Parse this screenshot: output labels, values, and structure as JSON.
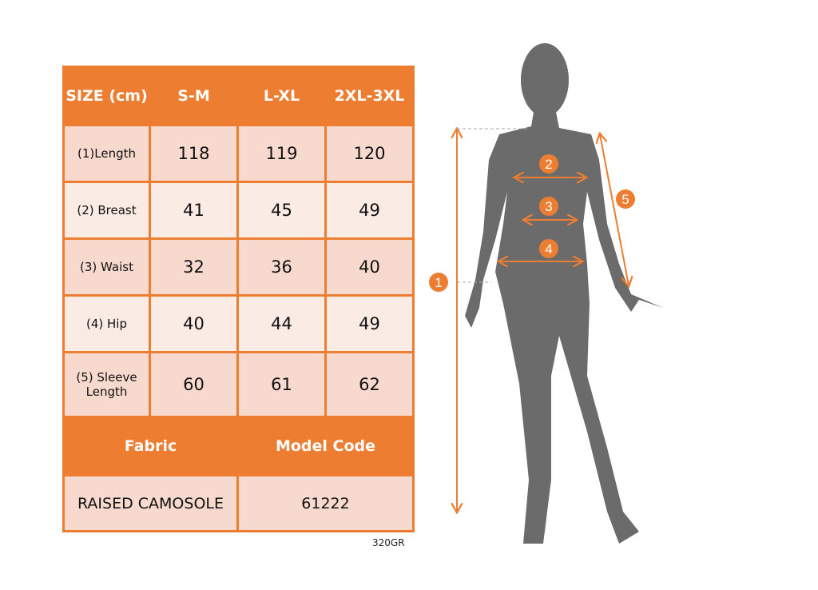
{
  "header": {
    "size": "SIZE (cm)",
    "cols": [
      "S-M",
      "L-XL",
      "2XL-3XL"
    ]
  },
  "rows": [
    {
      "label": "(1)Length",
      "values": [
        "118",
        "119",
        "120"
      ]
    },
    {
      "label": "(2) Breast",
      "values": [
        "41",
        "45",
        "49"
      ]
    },
    {
      "label": "(3) Waist",
      "values": [
        "32",
        "36",
        "40"
      ]
    },
    {
      "label": "(4) Hip",
      "values": [
        "40",
        "44",
        "49"
      ]
    },
    {
      "label": "(5) Sleeve Length",
      "values": [
        "60",
        "61",
        "62"
      ]
    }
  ],
  "footer": {
    "fabric_label": "Fabric",
    "model_label": "Model Code",
    "fabric": "RAISED CAMOSOLE",
    "model": "61222"
  },
  "note": "320GR",
  "markers": [
    "1",
    "2",
    "3",
    "4",
    "5"
  ],
  "colors": {
    "accent": "#ED7D31",
    "cell_dark": "#F8D9CD",
    "cell_light": "#FBEBE5",
    "silhouette": "#6B6B6B"
  }
}
